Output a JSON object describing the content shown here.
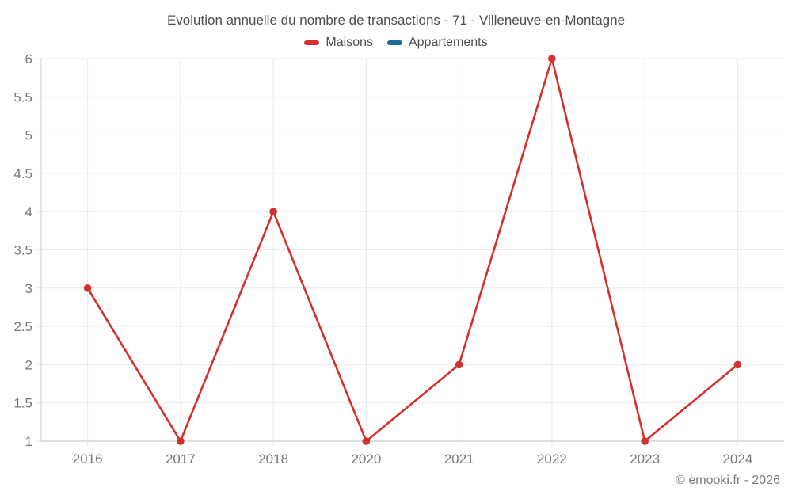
{
  "title": "Evolution annuelle du nombre de transactions - 71 - Villeneuve-en-Montagne",
  "legend": [
    {
      "label": "Maisons",
      "color": "#d2312d"
    },
    {
      "label": "Appartements",
      "color": "#1a6d9b"
    }
  ],
  "footer": "© emooki.fr - 2026",
  "colors": {
    "gridline": "#eaeaea",
    "axis_line": "#c9c9c9",
    "tick_label": "#777777",
    "title_text": "#4d4d4d",
    "footer_text": "#7a7a7a"
  },
  "chart_data": {
    "type": "line",
    "title": "Evolution annuelle du nombre de transactions - 71 - Villeneuve-en-Montagne",
    "categories": [
      "2016",
      "2017",
      "2018",
      "2020",
      "2021",
      "2022",
      "2023",
      "2024"
    ],
    "series": [
      {
        "name": "Maisons",
        "color": "#d2312d",
        "values": [
          3,
          1,
          4,
          1,
          2,
          6,
          1,
          2
        ]
      },
      {
        "name": "Appartements",
        "color": "#1a6d9b",
        "values": []
      }
    ],
    "xlabel": "",
    "ylabel": "",
    "ylim": [
      1,
      6
    ],
    "yticks": [
      1,
      1.5,
      2,
      2.5,
      3,
      3.5,
      4,
      4.5,
      5,
      5.5,
      6
    ],
    "grid": true,
    "legend_position": "top",
    "marker": "circle"
  }
}
